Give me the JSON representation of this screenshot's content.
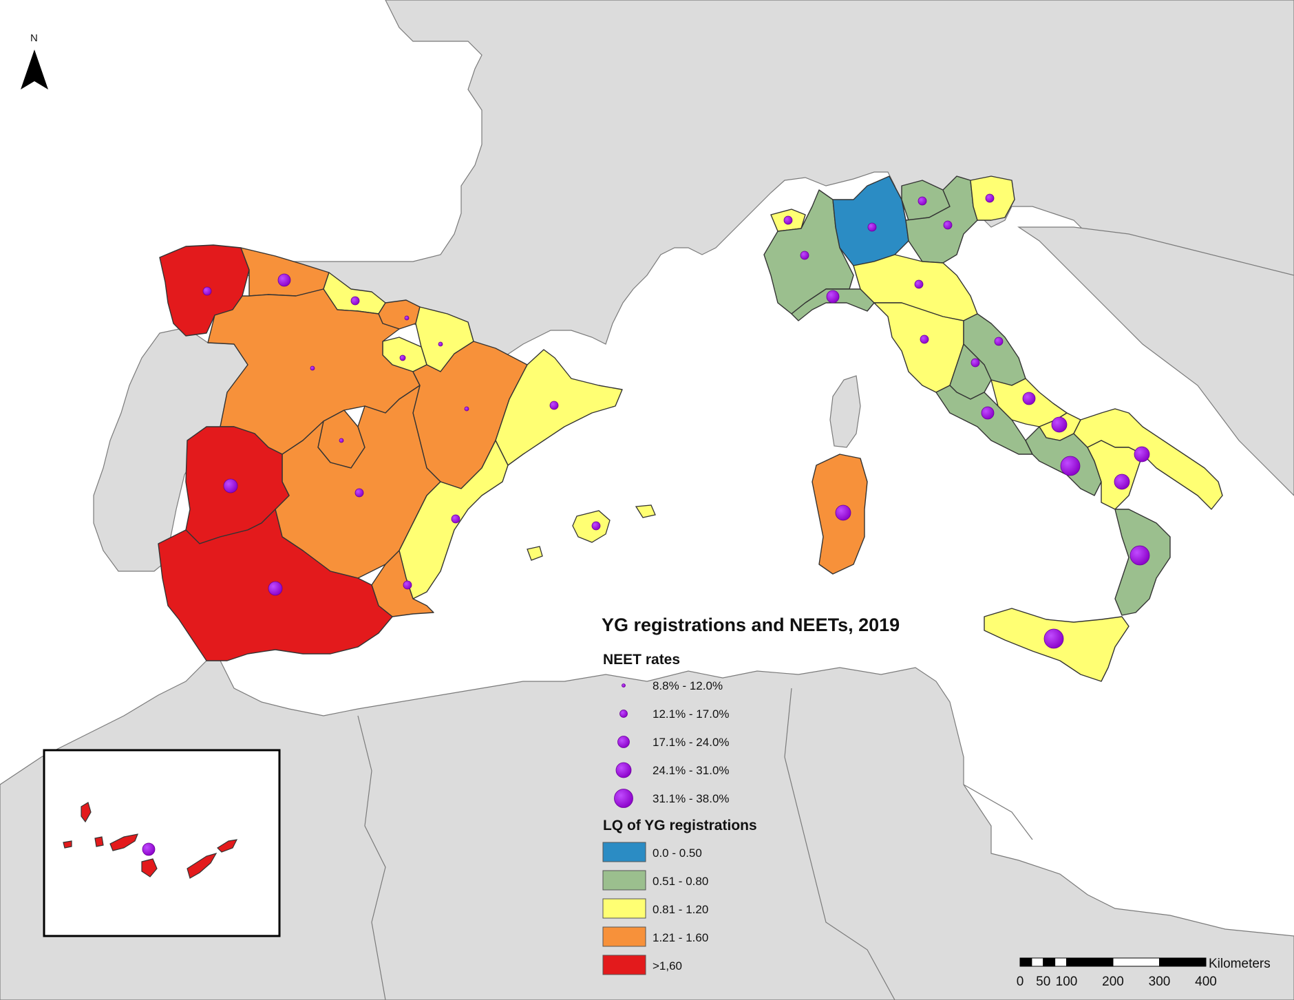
{
  "title": "YG registrations and NEETs, 2019",
  "north_label": "N",
  "neet_legend": {
    "heading": "NEET rates",
    "classes": [
      {
        "label": "8.8% - 12.0%",
        "size_rank": 1
      },
      {
        "label": "12.1% - 17.0%",
        "size_rank": 2
      },
      {
        "label": "17.1% - 24.0%",
        "size_rank": 3
      },
      {
        "label": "24.1% - 31.0%",
        "size_rank": 4
      },
      {
        "label": "31.1% - 38.0%",
        "size_rank": 5
      }
    ]
  },
  "lq_legend": {
    "heading": "LQ of YG registrations",
    "classes": [
      {
        "label": "0.0 - 0.50",
        "color": "#2b8cc4"
      },
      {
        "label": "0.51 - 0.80",
        "color": "#9bbf8e"
      },
      {
        "label": "0.81 - 1.20",
        "color": "#ffff73"
      },
      {
        "label": "1.21 - 1.60",
        "color": "#f7913a"
      },
      {
        "label": ">1,60",
        "color": "#e31a1c"
      }
    ]
  },
  "scale_bar": {
    "unit": "Kilometers",
    "ticks": [
      "0",
      "50",
      "100",
      "200",
      "300",
      "400"
    ]
  },
  "colors": {
    "sea": "#ffffff",
    "land_other": "#dcdcdc",
    "border": "#7a7a7a",
    "symbol": "#9400d3"
  }
}
